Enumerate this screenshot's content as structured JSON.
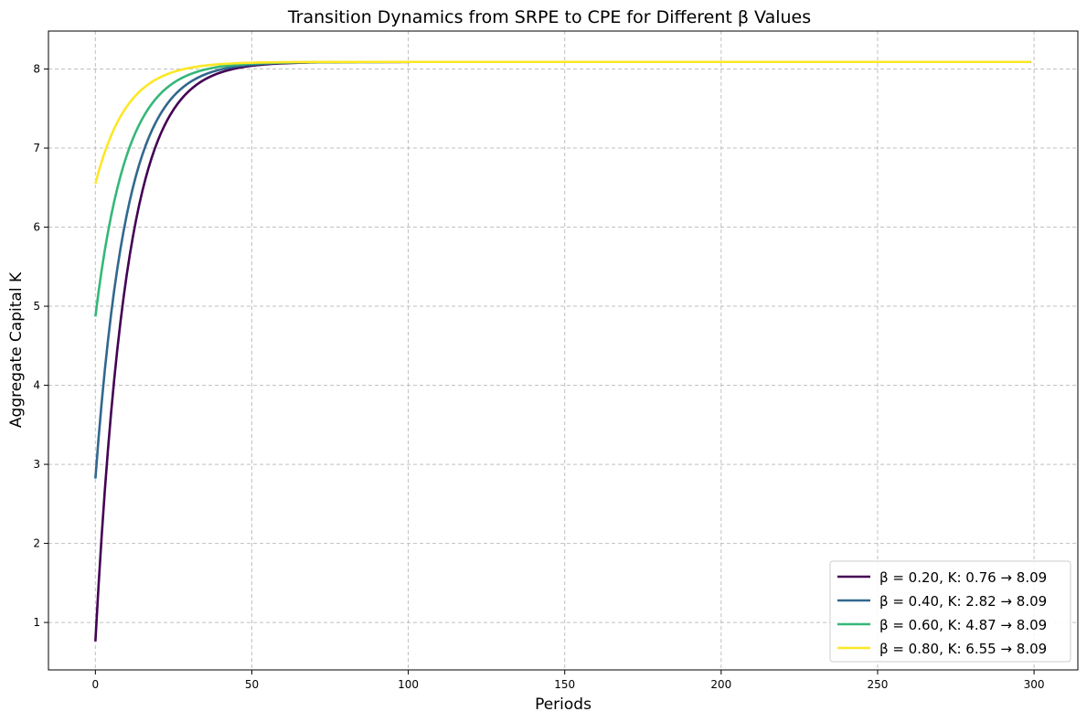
{
  "chart_data": {
    "type": "line",
    "title": "Transition Dynamics from SRPE to CPE for Different β Values",
    "xlabel": "Periods",
    "ylabel": "Aggregate Capital K",
    "xlim": [
      -15,
      314
    ],
    "ylim": [
      0.4,
      8.48
    ],
    "xticks": [
      0,
      50,
      100,
      150,
      200,
      250,
      300
    ],
    "yticks": [
      1,
      2,
      3,
      4,
      5,
      6,
      7,
      8
    ],
    "grid": true,
    "legend_position": "lower-right",
    "x_range": [
      0,
      299
    ],
    "series": [
      {
        "name": "β = 0.20, K: 0.76 → 8.09",
        "color": "#440154",
        "start": 0.76,
        "end": 8.09,
        "rate": 0.1
      },
      {
        "name": "β = 0.40, K: 2.82 → 8.09",
        "color": "#31688e",
        "start": 2.82,
        "end": 8.09,
        "rate": 0.1
      },
      {
        "name": "β = 0.60, K: 4.87 → 8.09",
        "color": "#35b779",
        "start": 4.87,
        "end": 8.09,
        "rate": 0.1
      },
      {
        "name": "β = 0.80, K: 6.55 → 8.09",
        "color": "#fde725",
        "start": 6.55,
        "end": 8.09,
        "rate": 0.1
      }
    ]
  }
}
